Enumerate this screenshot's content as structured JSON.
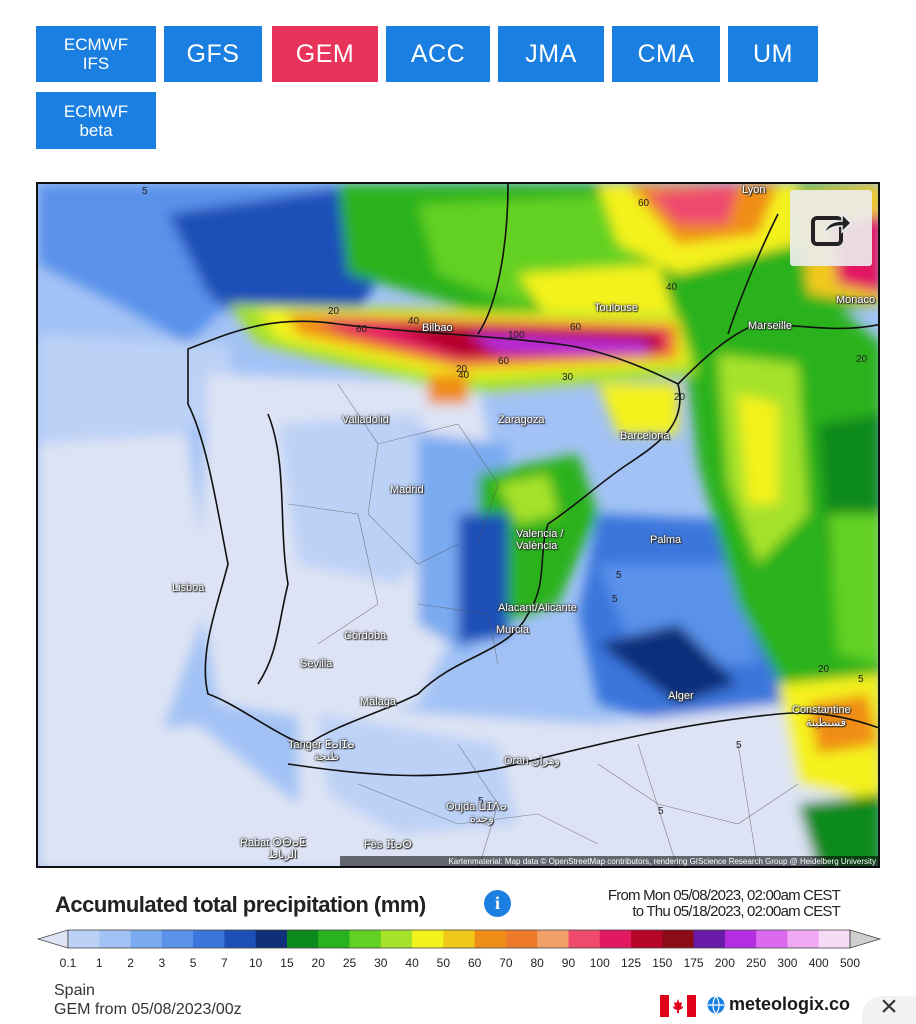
{
  "models": [
    {
      "id": "ecmwf-ifs",
      "label": "ECMWF\nIFS",
      "active": false
    },
    {
      "id": "gfs",
      "label": "GFS",
      "active": false
    },
    {
      "id": "gem",
      "label": "GEM",
      "active": true
    },
    {
      "id": "acc",
      "label": "ACC",
      "active": false
    },
    {
      "id": "jma",
      "label": "JMA",
      "active": false
    },
    {
      "id": "cma",
      "label": "CMA",
      "active": false
    },
    {
      "id": "um",
      "label": "UM",
      "active": false
    },
    {
      "id": "ecmwf-beta",
      "label": "ECMWF\nbeta",
      "active": false
    }
  ],
  "map": {
    "cities": [
      "Lyon",
      "Toulouse",
      "Monaco",
      "Marseille",
      "Bilbao",
      "Valladolid",
      "Zaragoza",
      "Barcelona",
      "Madrid",
      "Valencia / València",
      "Palma",
      "Lisboa",
      "Alacant/Alicante",
      "Murcia",
      "Córdoba",
      "Sevilla",
      "Málaga",
      "Alger",
      "Constantine",
      "قسنطينة",
      "Tanger ⵟⴰⵏⵊⴰ",
      "طنجة",
      "Oran وهران",
      "Oujda ⵡⵊⴷⴰ",
      "وجدة",
      "Rabat ⵔⴱⴰⵟ",
      "الرباط",
      "Fès ⴼⴰⵙ"
    ],
    "isolines": [
      "5",
      "40",
      "60",
      "20",
      "40",
      "60",
      "100",
      "60",
      "60",
      "30",
      "20",
      "20",
      "40",
      "5",
      "5",
      "20",
      "20",
      "5",
      "5",
      "5",
      "5"
    ],
    "attribution": "Kartenmaterial: Map data © OpenStreetMap contributors, rendering GIScience Research Group @ Heidelberg University",
    "share_icon": "share-icon"
  },
  "legend": {
    "title": "Accumulated total precipitation (mm)",
    "info_icon": "info-icon",
    "period_from": "From Mon 05/08/2023, 02:00am CEST",
    "period_to": "to Thu 05/18/2023, 02:00am CEST",
    "ticks": [
      "0.1",
      "1",
      "2",
      "3",
      "5",
      "7",
      "10",
      "15",
      "20",
      "25",
      "30",
      "40",
      "50",
      "60",
      "70",
      "80",
      "90",
      "100",
      "125",
      "150",
      "175",
      "200",
      "250",
      "300",
      "400",
      "500"
    ],
    "colors": [
      "#dde3f4",
      "#bcd1f6",
      "#a2c2f5",
      "#7aaaf0",
      "#5a92ea",
      "#3a76dc",
      "#1d4fb8",
      "#0f2f7a",
      "#0c8a1e",
      "#29b21f",
      "#63d124",
      "#a6e22a",
      "#f4f21c",
      "#f1c91a",
      "#f08d19",
      "#ee7a2a",
      "#f2a06a",
      "#ef4a6e",
      "#e21862",
      "#b5062a",
      "#8c0b16",
      "#6a1aa8",
      "#b22ee0",
      "#dc6aee",
      "#f0aaf5",
      "#f6dcf7",
      "#cfcfcf"
    ]
  },
  "footer": {
    "region": "Spain",
    "run": "GEM from 05/08/2023/00z",
    "flag_icon": "canada-flag-icon",
    "brand": "meteologix.co",
    "close_label": "×"
  },
  "colors": {
    "accent": "#1a7fe0",
    "active": "#e8345a"
  }
}
